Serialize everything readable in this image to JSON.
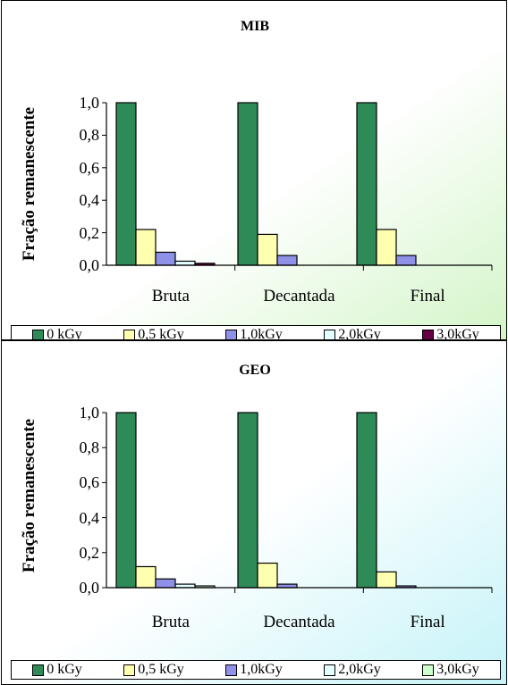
{
  "colors": {
    "series": [
      "#2e8b57",
      "#ffffb0",
      "#8f90e8",
      "#e4ffff",
      "#660044"
    ],
    "geo_last_series": "#ccffcc"
  },
  "chart_data": [
    {
      "type": "bar",
      "title": "MIB",
      "ylabel": "Fração remanescente",
      "xlabel": "",
      "ylim": [
        0,
        1
      ],
      "yticks": [
        "0,0",
        "0,2",
        "0,4",
        "0,6",
        "0,8",
        "1,0"
      ],
      "categories": [
        "Bruta",
        "Decantada",
        "Final"
      ],
      "series": [
        {
          "name": "0 kGy",
          "values": [
            1.0,
            1.0,
            1.0
          ]
        },
        {
          "name": "0,5 kGy",
          "values": [
            0.22,
            0.19,
            0.22
          ]
        },
        {
          "name": "1,0kGy",
          "values": [
            0.08,
            0.06,
            0.06
          ]
        },
        {
          "name": "2,0kGy",
          "values": [
            0.025,
            0,
            0
          ]
        },
        {
          "name": "3,0kGy",
          "values": [
            0.012,
            0,
            0
          ]
        }
      ],
      "legend_position": "bottom",
      "grid": false
    },
    {
      "type": "bar",
      "title": "GEO",
      "ylabel": "Fração remanescente",
      "xlabel": "",
      "ylim": [
        0,
        1
      ],
      "yticks": [
        "0,0",
        "0,2",
        "0,4",
        "0,6",
        "0,8",
        "1,0"
      ],
      "categories": [
        "Bruta",
        "Decantada",
        "Final"
      ],
      "series": [
        {
          "name": "0 kGy",
          "values": [
            1.0,
            1.0,
            1.0
          ]
        },
        {
          "name": "0,5 kGy",
          "values": [
            0.12,
            0.14,
            0.09
          ]
        },
        {
          "name": "1,0kGy",
          "values": [
            0.05,
            0.02,
            0.01
          ]
        },
        {
          "name": "2,0kGy",
          "values": [
            0.02,
            0,
            0
          ]
        },
        {
          "name": "3,0kGy",
          "values": [
            0.01,
            0,
            0
          ]
        }
      ],
      "legend_position": "bottom",
      "grid": false
    }
  ]
}
